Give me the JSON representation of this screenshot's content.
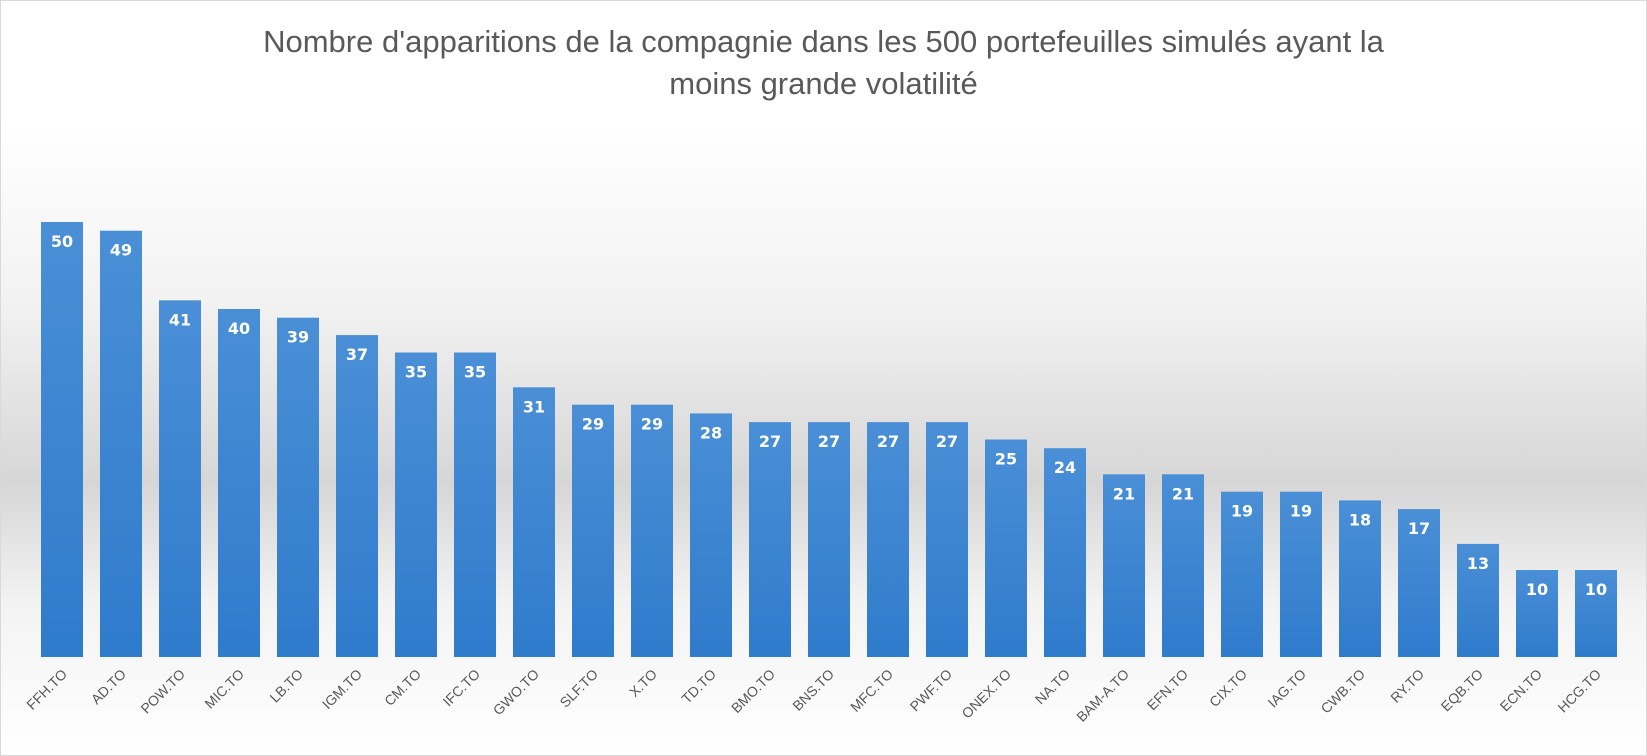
{
  "chart_data": {
    "type": "bar",
    "title_lines": [
      "Nombre d'apparitions de la compagnie dans les 500 portefeuilles simulés ayant la",
      "moins grande volatilité"
    ],
    "title": "Nombre d'apparitions de la compagnie dans les 500 portefeuilles simulés ayant la moins grande volatilité",
    "xlabel": "",
    "ylabel": "",
    "grid": false,
    "legend": "none",
    "data_labels": "inside-end",
    "bar_color": "#4a8fd6",
    "bar_color_dark": "#2f7bcc",
    "ylim": [
      0,
      50
    ],
    "categories": [
      "FFH.TO",
      "AD.TO",
      "POW.TO",
      "MIC.TO",
      "LB.TO",
      "IGM.TO",
      "CM.TO",
      "IFC.TO",
      "GWO.TO",
      "SLF.TO",
      "X.TO",
      "TD.TO",
      "BMO.TO",
      "BNS.TO",
      "MFC.TO",
      "PWF.TO",
      "ONEX.TO",
      "NA.TO",
      "BAM-A.TO",
      "EFN.TO",
      "CIX.TO",
      "IAG.TO",
      "CWB.TO",
      "RY.TO",
      "EQB.TO",
      "ECN.TO",
      "HCG.TO"
    ],
    "values": [
      50,
      49,
      41,
      40,
      39,
      37,
      35,
      35,
      31,
      29,
      29,
      28,
      27,
      27,
      27,
      27,
      25,
      24,
      21,
      21,
      19,
      19,
      18,
      17,
      13,
      10,
      10
    ]
  }
}
